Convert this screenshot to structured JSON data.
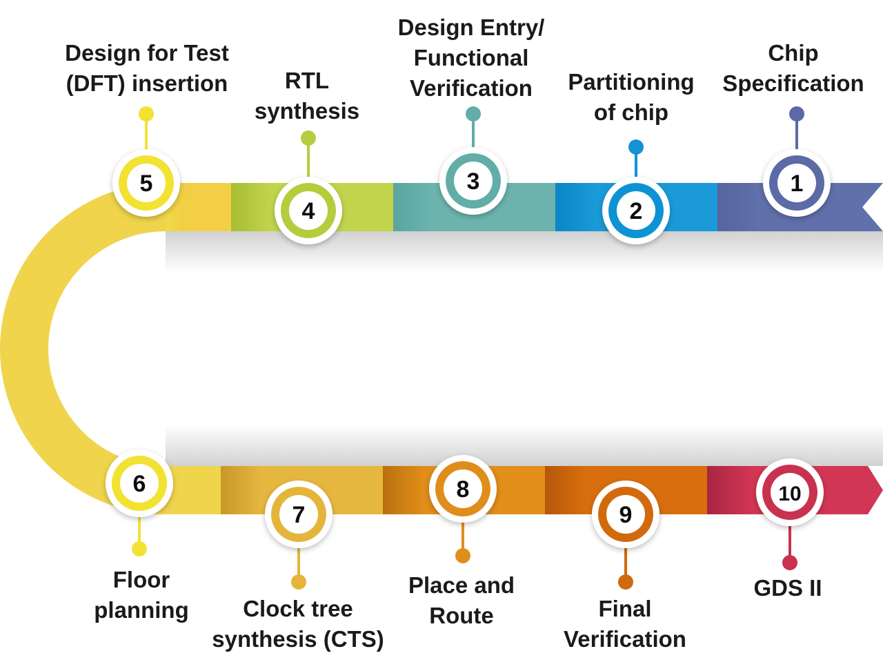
{
  "title": "",
  "steps": [
    {
      "number": "1",
      "label": [
        "Chip",
        "Specification"
      ],
      "color": "#5b6aa6",
      "bar": [
        "#56649f",
        "#6070ab"
      ]
    },
    {
      "number": "2",
      "label": [
        "Partitioning",
        "of chip"
      ],
      "color": "#1193d4",
      "bar": [
        "#0a86c6",
        "#1a9ad8"
      ]
    },
    {
      "number": "3",
      "label": [
        "Design Entry/",
        "Functional",
        "Verification"
      ],
      "color": "#62ada8",
      "bar": [
        "#5aa6a1",
        "#6cb3ae"
      ]
    },
    {
      "number": "4",
      "label": [
        "RTL",
        "synthesis"
      ],
      "color": "#b7cc3e",
      "bar": [
        "#a8bd33",
        "#c2d44c"
      ]
    },
    {
      "number": "5",
      "label": [
        "Design for Test",
        "(DFT) insertion"
      ],
      "color": "#f2e233",
      "bar": [
        "#f0da48",
        "#f2cf45"
      ]
    },
    {
      "number": "6",
      "label": [
        "Floor",
        "planning"
      ],
      "color": "#f2e233",
      "bar": [
        "#f0d44c",
        "#f0d44c"
      ]
    },
    {
      "number": "7",
      "label": [
        "Clock tree",
        "synthesis (CTS)"
      ],
      "color": "#e5b53a",
      "bar": [
        "#c9962a",
        "#e6b73f"
      ]
    },
    {
      "number": "8",
      "label": [
        "Place and",
        "Route"
      ],
      "color": "#df8e1d",
      "bar": [
        "#b7700f",
        "#e18e1a"
      ]
    },
    {
      "number": "9",
      "label": [
        "Final",
        "Verification"
      ],
      "color": "#d16a0e",
      "bar": [
        "#b4580a",
        "#d86e0e"
      ]
    },
    {
      "number": "10",
      "label": [
        "GDS II"
      ],
      "color": "#c8314f",
      "bar": [
        "#a82542",
        "#d13654"
      ]
    }
  ]
}
